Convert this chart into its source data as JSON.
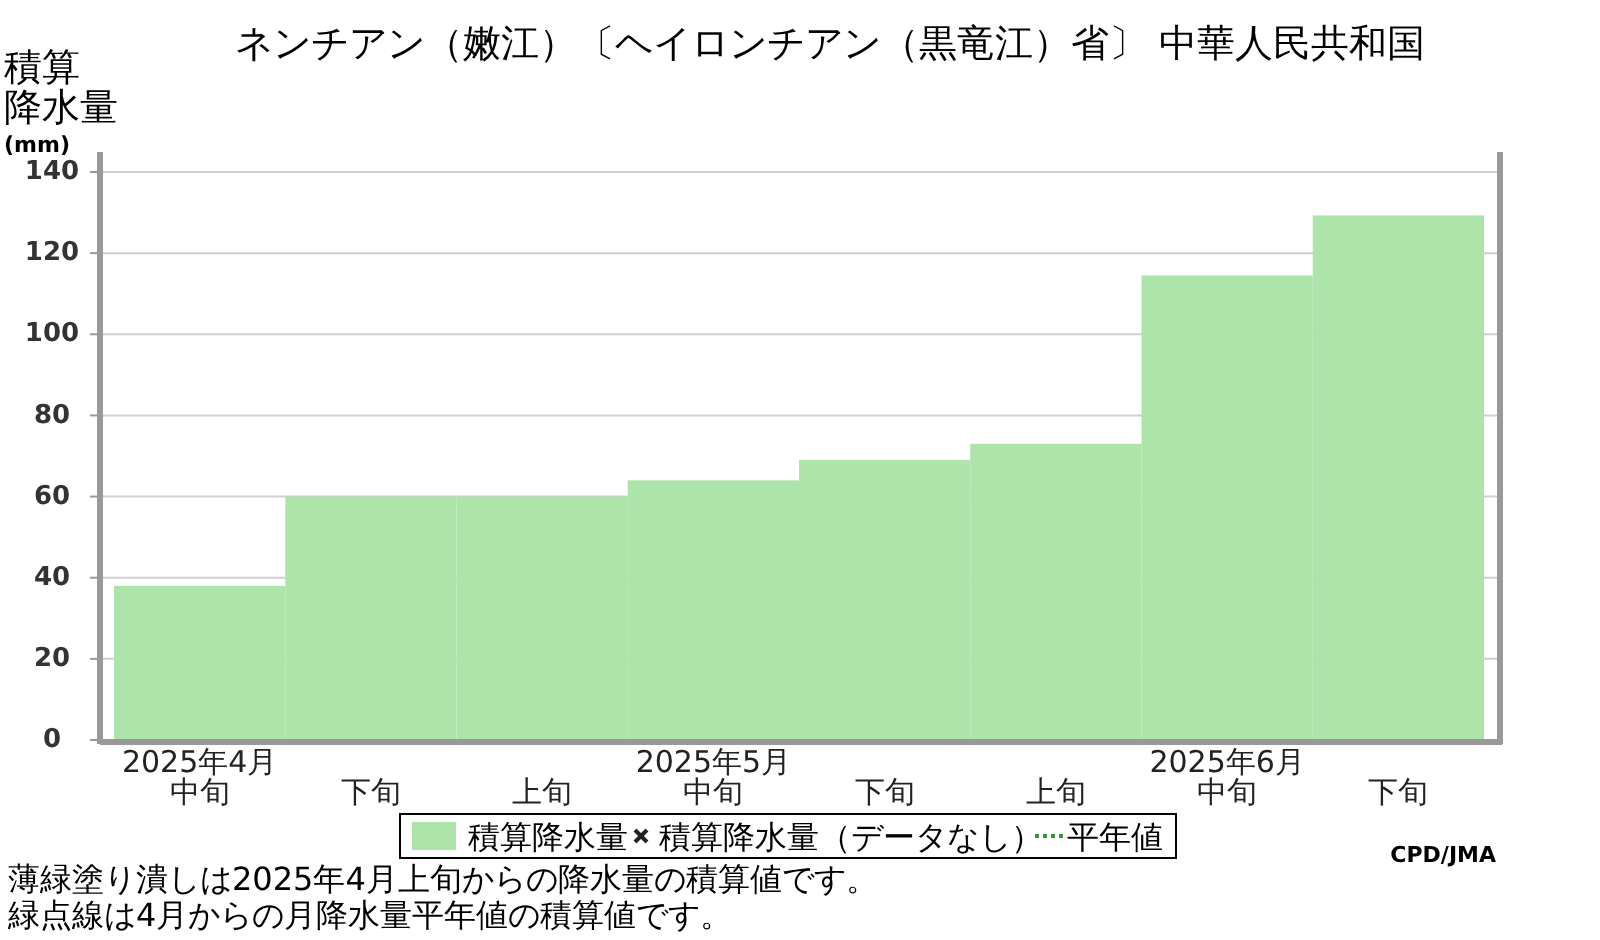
{
  "chart_data": {
    "type": "bar",
    "title": "ネンチアン（嫩江）〔ヘイロンチアン（黒竜江）省〕 中華人民共和国",
    "ylabel": "積算降水量(mm)",
    "categories": [
      "2025年4月中旬",
      "下旬",
      "上旬",
      "2025年5月中旬",
      "下旬",
      "上旬",
      "2025年6月中旬",
      "下旬"
    ],
    "series": [
      {
        "name": "積算降水量",
        "color": "#ace4aa",
        "values": [
          38,
          60,
          60,
          64,
          69,
          73,
          114.5,
          129.3
        ]
      },
      {
        "name": "積算降水量（データなし）",
        "type": "scatter",
        "marker": "cross",
        "color": "#222222",
        "values": [
          null,
          null,
          null,
          null,
          null,
          null,
          null,
          null
        ]
      },
      {
        "name": "平年値",
        "type": "line",
        "line_style": "dotted",
        "color": "#339933",
        "values": [
          null,
          null,
          null,
          null,
          null,
          null,
          null,
          null
        ]
      }
    ],
    "ylim": [
      0,
      140
    ],
    "yticks": [
      0,
      20,
      40,
      60,
      80,
      100,
      120,
      140
    ],
    "grid": "y",
    "legend": "bottom",
    "annotations": [
      "薄緑塗り潰しは2025年4月上旬からの降水量の積算値です。",
      "緑点線は4月からの月降水量平年値の積算値です。",
      "CPD/JMA"
    ]
  }
}
